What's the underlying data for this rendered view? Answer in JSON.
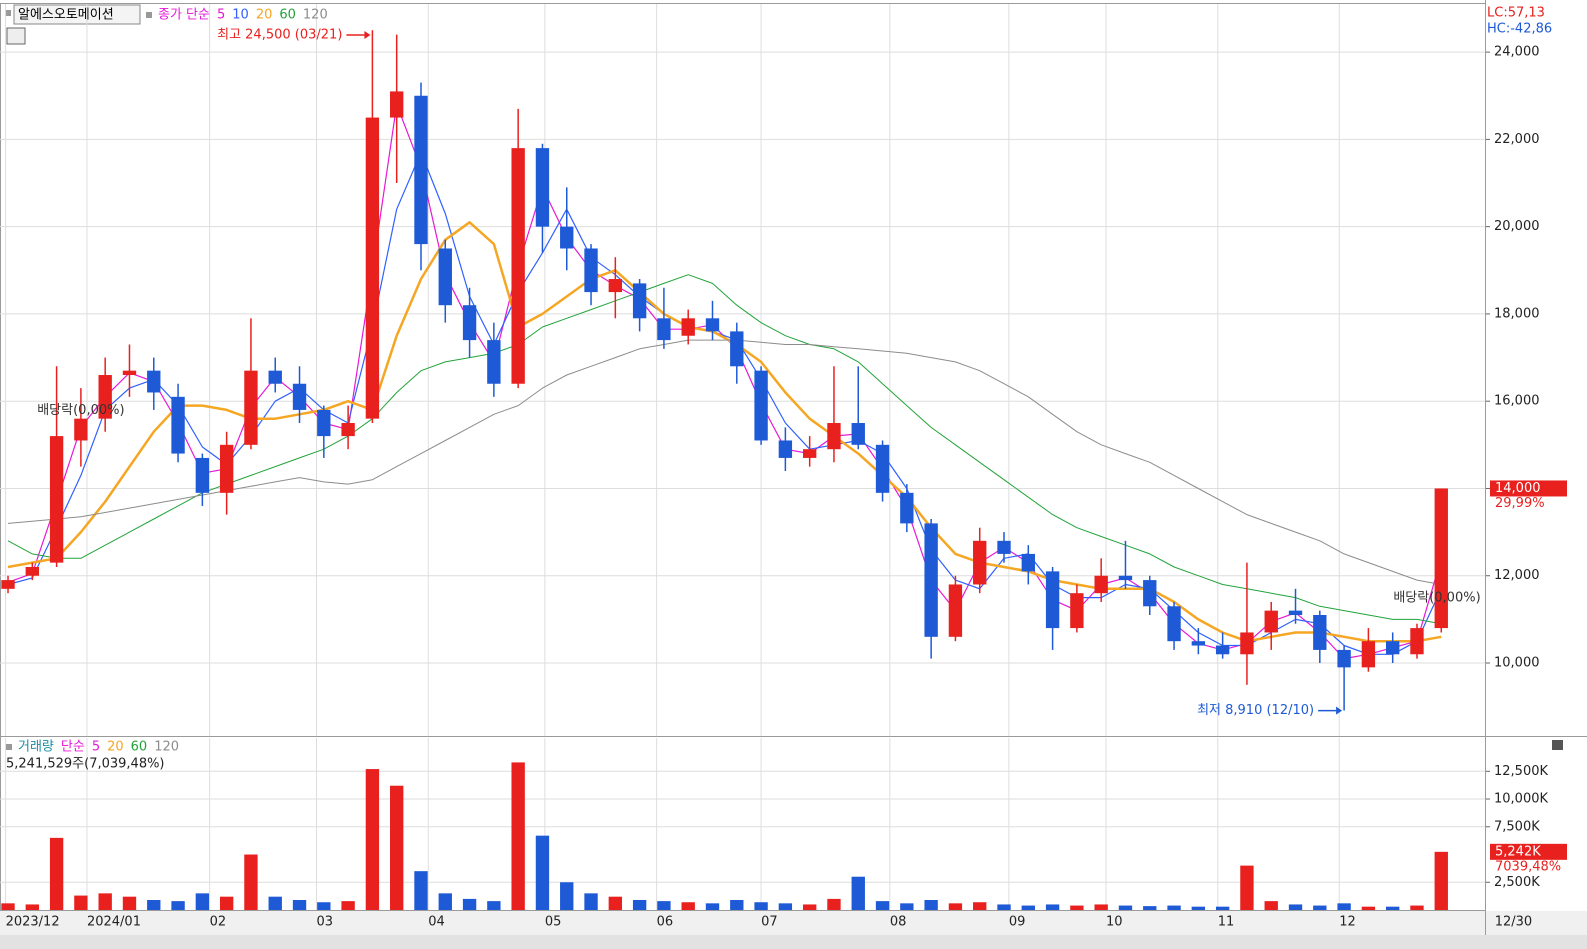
{
  "toolbar": {
    "stock_name": "알에스오토메이션"
  },
  "indicators": {
    "lc": "LC:57,13",
    "hc": "HC:-42,86"
  },
  "chart_data": [
    {
      "type": "candlestick",
      "legend_title": "종가 단순",
      "xlim": [
        -0.33,
        60.8
      ],
      "xticks": [
        {
          "value": -0.1,
          "label": "2023/12"
        },
        {
          "value": 3.25,
          "label": "2024/01"
        },
        {
          "value": 8.3,
          "label": "02"
        },
        {
          "value": 12.7,
          "label": "03"
        },
        {
          "value": 17.3,
          "label": "04"
        },
        {
          "value": 22.1,
          "label": "05"
        },
        {
          "value": 26.7,
          "label": "06"
        },
        {
          "value": 31.0,
          "label": "07"
        },
        {
          "value": 36.3,
          "label": "08"
        },
        {
          "value": 41.2,
          "label": "09"
        },
        {
          "value": 45.2,
          "label": "10"
        },
        {
          "value": 49.8,
          "label": "11"
        },
        {
          "value": 54.8,
          "label": "12"
        },
        {
          "value": 61.2,
          "label": "12/30"
        }
      ],
      "ylim": [
        8350,
        25080
      ],
      "yticks": [
        {
          "value": 10000,
          "label": "10,000"
        },
        {
          "value": 12000,
          "label": "12,000"
        },
        {
          "value": 14000,
          "label": "14,000"
        },
        {
          "value": 16000,
          "label": "16,000"
        },
        {
          "value": 18000,
          "label": "18,000"
        },
        {
          "value": 20000,
          "label": "20,000"
        },
        {
          "value": 22000,
          "label": "22,000"
        },
        {
          "value": 24000,
          "label": "24,000"
        }
      ],
      "grid": true,
      "up_color": "#e8211f",
      "down_color": "#1e5ad6",
      "open": [
        11700,
        12000,
        12300,
        15100,
        15600,
        16600,
        16700,
        16100,
        14700,
        13900,
        15000,
        16700,
        16400,
        15800,
        15200,
        15600,
        22500,
        23000,
        19500,
        18200,
        17400,
        16400,
        21800,
        20000,
        19500,
        18500,
        18700,
        17900,
        17500,
        17900,
        17600,
        16700,
        15100,
        14700,
        14900,
        15500,
        15000,
        13900,
        13200,
        10600,
        11800,
        12800,
        12500,
        12100,
        10800,
        11600,
        12000,
        11900,
        11300,
        10500,
        10400,
        10200,
        10700,
        11200,
        11100,
        10300,
        9900,
        10500,
        10200,
        10800
      ],
      "high": [
        12000,
        12300,
        16800,
        16300,
        17000,
        17300,
        17000,
        16400,
        14800,
        15300,
        17900,
        17000,
        16800,
        15900,
        15900,
        24500,
        24400,
        23300,
        19700,
        18600,
        17800,
        22700,
        21900,
        20900,
        19600,
        19300,
        18800,
        18600,
        18100,
        18300,
        17800,
        16800,
        15400,
        15200,
        16800,
        16800,
        15100,
        14100,
        13300,
        12000,
        13100,
        13000,
        12700,
        12200,
        11800,
        12400,
        12800,
        12000,
        11400,
        10800,
        10700,
        12300,
        11400,
        11700,
        11200,
        10400,
        10800,
        10700,
        10900,
        14000
      ],
      "low": [
        11600,
        11900,
        12200,
        14500,
        15300,
        16100,
        15800,
        14600,
        13600,
        13400,
        14900,
        16200,
        15500,
        14700,
        14900,
        15500,
        21000,
        19000,
        17800,
        17000,
        16100,
        16300,
        19400,
        19000,
        18200,
        17900,
        17600,
        17200,
        17300,
        17400,
        16400,
        15000,
        14400,
        14500,
        14600,
        14900,
        13700,
        13000,
        10100,
        10500,
        11600,
        12300,
        11800,
        10300,
        10700,
        11400,
        11700,
        11100,
        10300,
        10200,
        10100,
        9500,
        10300,
        10900,
        10000,
        8910,
        9800,
        10000,
        10100,
        10700
      ],
      "close": [
        11900,
        12200,
        15200,
        15600,
        16600,
        16700,
        16200,
        14800,
        13900,
        15000,
        16700,
        16400,
        15800,
        15200,
        15500,
        22500,
        23100,
        19600,
        18200,
        17400,
        16400,
        21800,
        20000,
        19500,
        18500,
        18800,
        17900,
        17400,
        17900,
        17600,
        16800,
        15100,
        14700,
        14900,
        15500,
        15000,
        13900,
        13200,
        10600,
        11800,
        12800,
        12500,
        12100,
        10800,
        11600,
        12000,
        11900,
        11300,
        10500,
        10400,
        10200,
        10700,
        11200,
        11100,
        10300,
        9900,
        10500,
        10200,
        10800,
        14000
      ],
      "series": [
        {
          "name": "5",
          "color": "#e619d6",
          "width": 1.2,
          "values": [
            11850,
            12050,
            13700,
            15400,
            16100,
            16650,
            16450,
            15500,
            14350,
            14450,
            15850,
            16550,
            16100,
            15500,
            15350,
            19000,
            22800,
            21350,
            18900,
            17800,
            16900,
            19100,
            20900,
            19750,
            19000,
            18650,
            18350,
            17650,
            17650,
            17750,
            17200,
            15950,
            14900,
            14800,
            15200,
            15250,
            14450,
            13550,
            11900,
            11200,
            12300,
            12650,
            12300,
            11450,
            11200,
            11800,
            11950,
            11600,
            10900,
            10450,
            10300,
            10450,
            10950,
            11150,
            10700,
            10100,
            10200,
            10350,
            10500,
            12400
          ]
        },
        {
          "name": "10",
          "color": "#3060ff",
          "width": 1.2,
          "values": [
            11800,
            11950,
            13100,
            14300,
            15800,
            16300,
            16500,
            15900,
            14950,
            14550,
            15200,
            16000,
            16300,
            15800,
            15500,
            17700,
            20400,
            21700,
            20300,
            18400,
            17300,
            18500,
            19400,
            20400,
            19300,
            18900,
            18400,
            18000,
            17700,
            17600,
            17400,
            16500,
            15500,
            14900,
            15000,
            15100,
            14800,
            14000,
            12600,
            11900,
            11700,
            12400,
            12500,
            11800,
            11500,
            11500,
            11800,
            11700,
            11200,
            10700,
            10400,
            10400,
            10700,
            11000,
            10900,
            10400,
            10200,
            10200,
            10500,
            11700
          ]
        },
        {
          "name": "20",
          "color": "#f5a623",
          "width": 2.5,
          "values": [
            12200,
            12300,
            12400,
            13000,
            13700,
            14500,
            15300,
            15900,
            15900,
            15800,
            15600,
            15600,
            15700,
            15800,
            16000,
            15800,
            17500,
            18800,
            19700,
            20100,
            19600,
            17700,
            18000,
            18400,
            18800,
            19000,
            18500,
            18000,
            17700,
            17600,
            17300,
            16900,
            16200,
            15600,
            15200,
            14800,
            14300,
            13800,
            13100,
            12500,
            12300,
            12200,
            12100,
            11900,
            11800,
            11700,
            11700,
            11700,
            11400,
            11000,
            10700,
            10500,
            10600,
            10700,
            10700,
            10600,
            10500,
            10500,
            10500,
            10600
          ]
        },
        {
          "name": "60",
          "color": "#22a33a",
          "width": 1,
          "values": [
            12800,
            12500,
            12400,
            12400,
            12700,
            13000,
            13300,
            13600,
            13900,
            14100,
            14300,
            14500,
            14700,
            14900,
            15200,
            15600,
            16200,
            16700,
            16900,
            17000,
            17100,
            17300,
            17700,
            17900,
            18100,
            18300,
            18500,
            18700,
            18900,
            18700,
            18200,
            17800,
            17500,
            17300,
            17200,
            16900,
            16400,
            15900,
            15400,
            15000,
            14600,
            14200,
            13800,
            13400,
            13100,
            12900,
            12700,
            12500,
            12200,
            12000,
            11800,
            11700,
            11600,
            11500,
            11300,
            11200,
            11100,
            11000,
            11000,
            10900
          ]
        },
        {
          "name": "120",
          "color": "#8c8c8c",
          "width": 1,
          "values": [
            13200,
            13250,
            13300,
            13350,
            13450,
            13550,
            13650,
            13750,
            13850,
            13950,
            14050,
            14150,
            14250,
            14150,
            14100,
            14200,
            14500,
            14800,
            15100,
            15400,
            15700,
            15900,
            16300,
            16600,
            16800,
            17000,
            17200,
            17300,
            17400,
            17400,
            17400,
            17350,
            17300,
            17300,
            17250,
            17200,
            17150,
            17100,
            17000,
            16900,
            16700,
            16400,
            16100,
            15700,
            15300,
            15000,
            14800,
            14600,
            14300,
            14000,
            13700,
            13400,
            13200,
            13000,
            12800,
            12500,
            12300,
            12100,
            11900,
            11800
          ]
        }
      ],
      "annotations": [
        {
          "label": "최고 24,500 (03/21)",
          "index": 15,
          "value": 24500,
          "color": "#e8211f"
        },
        {
          "label": "최저 8,910 (12/10)",
          "index": 55,
          "value": 8910,
          "color": "#1e5ad6"
        }
      ],
      "dividends": [
        {
          "label": "배당락(0,00%)",
          "index": 3
        },
        {
          "label": "배당락(0,00%)",
          "index": 59
        }
      ],
      "last": {
        "value": 14000,
        "label": "14,000",
        "change_label": "29,99%"
      }
    },
    {
      "type": "volume",
      "title": "거래량",
      "legend_title": "단순",
      "ma_labels": [
        "5",
        "20",
        "60",
        "120"
      ],
      "ma_colors": [
        "#e619d6",
        "#f5a623",
        "#22a33a",
        "#8c8c8c"
      ],
      "summary": "5,241,529주(7,039,48%)",
      "ylim": [
        0,
        15500
      ],
      "yticks": [
        {
          "value": 2500,
          "label": "2,500K"
        },
        {
          "value": 7500,
          "label": "7,500K"
        },
        {
          "value": 10000,
          "label": "10,000K"
        },
        {
          "value": 12500,
          "label": "12,500K"
        }
      ],
      "values": [
        600,
        500,
        6500,
        1300,
        1500,
        1200,
        900,
        800,
        1500,
        1200,
        5000,
        1200,
        900,
        700,
        800,
        12700,
        11200,
        3500,
        1500,
        1000,
        800,
        13300,
        6700,
        2500,
        1500,
        1200,
        900,
        800,
        700,
        600,
        900,
        700,
        600,
        500,
        1000,
        3000,
        800,
        600,
        900,
        600,
        700,
        500,
        400,
        500,
        400,
        500,
        400,
        350,
        400,
        300,
        300,
        4000,
        800,
        500,
        400,
        600,
        300,
        300,
        400,
        5242
      ],
      "last": {
        "value": 5242,
        "label": "5,242K",
        "change_label": "7039,48%"
      }
    }
  ]
}
